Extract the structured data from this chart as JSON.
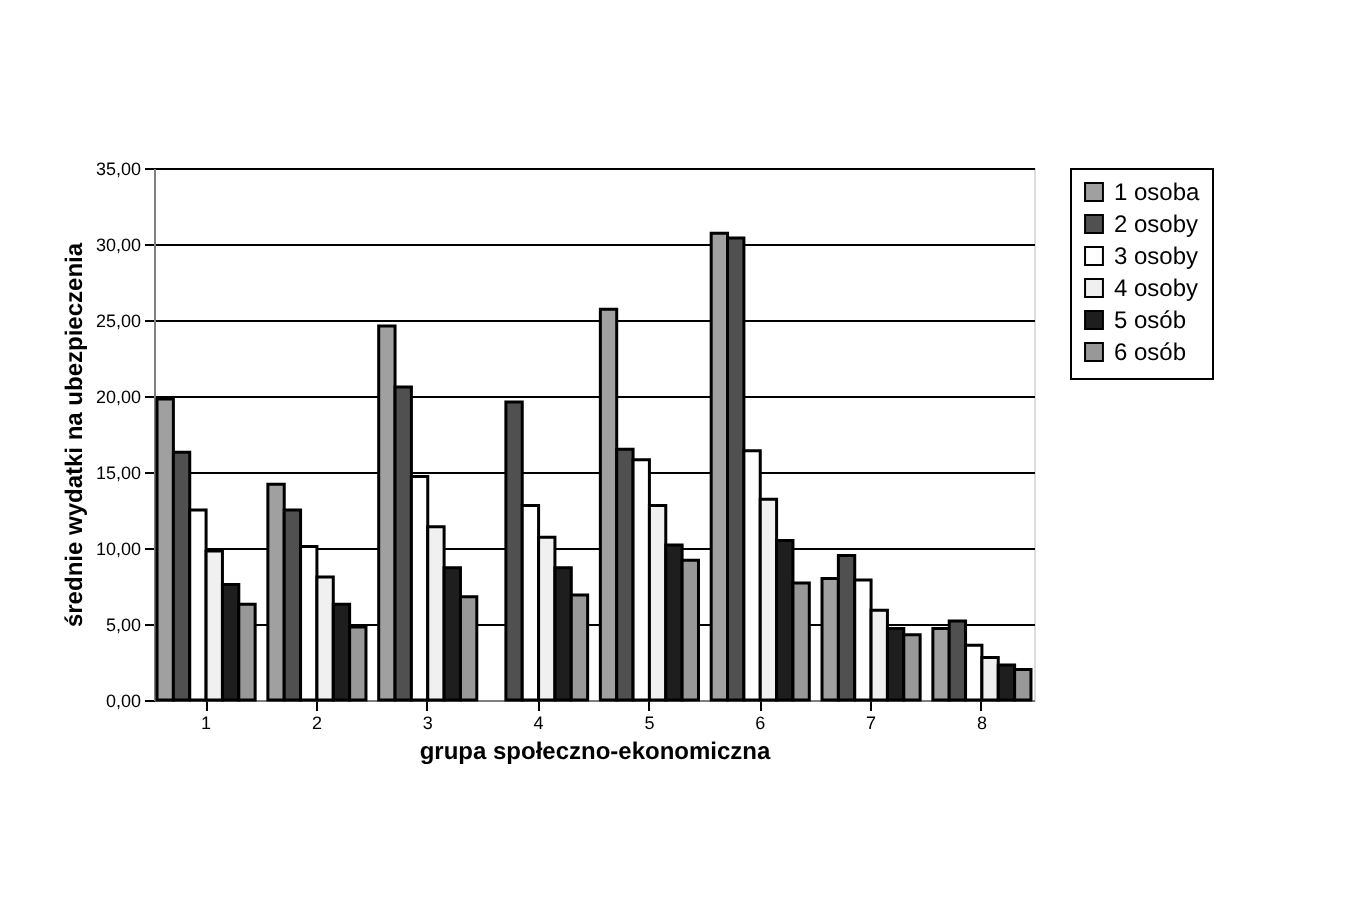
{
  "chart_data": {
    "type": "bar",
    "xlabel": "grupa społeczno-ekonomiczna",
    "ylabel": "średnie wydatki na ubezpieczenia",
    "categories": [
      "1",
      "2",
      "3",
      "4",
      "5",
      "6",
      "7",
      "8"
    ],
    "series": [
      {
        "name": "1 osoba",
        "color": "#a0a0a0",
        "values": [
          19.8,
          14.2,
          24.6,
          null,
          25.7,
          30.7,
          8.0,
          4.7
        ]
      },
      {
        "name": "2 osoby",
        "color": "#505050",
        "values": [
          16.3,
          12.5,
          20.6,
          19.6,
          16.5,
          30.4,
          9.5,
          5.2
        ]
      },
      {
        "name": "3 osoby",
        "color": "#ffffff",
        "values": [
          12.5,
          10.1,
          14.7,
          12.8,
          15.8,
          16.4,
          7.9,
          3.6
        ]
      },
      {
        "name": "4 osoby",
        "color": "#f0f0f0",
        "values": [
          9.8,
          8.1,
          11.4,
          10.7,
          12.8,
          13.2,
          5.9,
          2.8
        ]
      },
      {
        "name": "5 osób",
        "color": "#1e1e1e",
        "values": [
          7.6,
          6.3,
          8.7,
          8.7,
          10.2,
          10.5,
          4.7,
          2.3
        ]
      },
      {
        "name": "6 osób",
        "color": "#989898",
        "values": [
          6.3,
          4.8,
          6.8,
          6.9,
          9.2,
          7.7,
          4.3,
          2.0
        ]
      }
    ],
    "ylim": [
      0,
      35
    ],
    "yticks": [
      {
        "value": 0,
        "label": "0,00"
      },
      {
        "value": 5,
        "label": "5,00"
      },
      {
        "value": 10,
        "label": "10,00"
      },
      {
        "value": 15,
        "label": "15,00"
      },
      {
        "value": 20,
        "label": "20,00"
      },
      {
        "value": 25,
        "label": "25,00"
      },
      {
        "value": 30,
        "label": "30,00"
      },
      {
        "value": 35,
        "label": "35,00"
      }
    ],
    "grid": "y",
    "legend": "right"
  }
}
